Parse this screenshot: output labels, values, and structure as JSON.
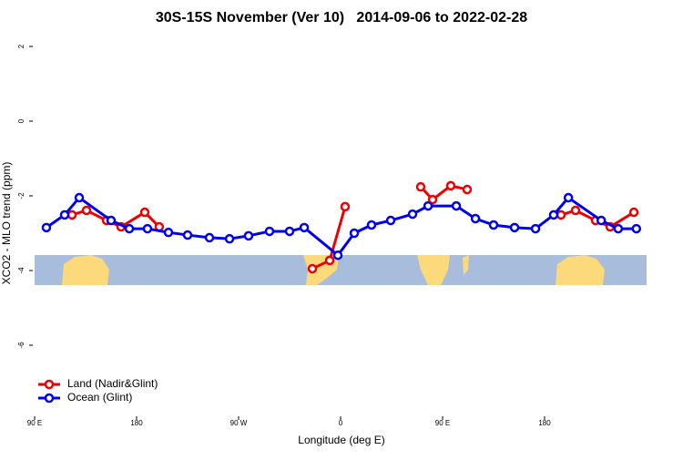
{
  "chart_data": {
    "type": "line",
    "title": "30S-15S November (Ver 10)   2014-09-06 to 2022-02-28",
    "xlabel": "Longitude (deg E)",
    "ylabel": "XCO2 - MLO trend (ppm)",
    "xlim": [
      90,
      630
    ],
    "xticks": [
      {
        "value": 90,
        "label": "90 E"
      },
      180,
      {
        "value": 270,
        "label": "90 W"
      },
      {
        "value": 360,
        "label": "0"
      },
      {
        "value": 450,
        "label": "90 E"
      },
      {
        "value": 540,
        "label": "180"
      }
    ],
    "ylim": [
      -8,
      2.3
    ],
    "yticks": [
      2,
      0,
      -2,
      -4,
      -6
    ],
    "legend": "bottom-left",
    "series": [
      {
        "name": "Land (Nadir&Glint)",
        "color": "#ee0000",
        "x": [
          123,
          135.8,
          153.5,
          166.3,
          187.2,
          200,
          null,
          335.1,
          350.4,
          364,
          null,
          430.7,
          441.2,
          457.2,
          471.7,
          null,
          554.5,
          567.3,
          585,
          597.9,
          618.8
        ],
        "values": [
          -2.51,
          -2.39,
          -2.66,
          -2.83,
          -2.44,
          -2.83,
          null,
          -3.95,
          -3.73,
          -2.29,
          null,
          -1.76,
          -2.1,
          -1.73,
          -1.83,
          null,
          -2.51,
          -2.39,
          -2.66,
          -2.83,
          -2.44
        ]
      },
      {
        "name": "Ocean (Glint)",
        "color": "#0000ee",
        "x": [
          100.4,
          116.5,
          129.4,
          157.5,
          173.6,
          189.6,
          208.1,
          225,
          244.3,
          262,
          278.8,
          297.3,
          315,
          327.9,
          357.6,
          372.1,
          387.3,
          404.2,
          423.5,
          437.2,
          462.1,
          479,
          495,
          513.5,
          532,
          548,
          561,
          590,
          605,
          621
        ],
        "values": [
          -2.85,
          -2.51,
          -2.05,
          -2.66,
          -2.88,
          -2.88,
          -2.98,
          -3.05,
          -3.12,
          -3.15,
          -3.07,
          -2.95,
          -2.95,
          -2.85,
          -3.59,
          -3.0,
          -2.78,
          -2.66,
          -2.49,
          -2.27,
          -2.27,
          -2.61,
          -2.78,
          -2.85,
          -2.88,
          -2.51,
          -2.05,
          -2.66,
          -2.88,
          -2.88
        ]
      }
    ]
  }
}
